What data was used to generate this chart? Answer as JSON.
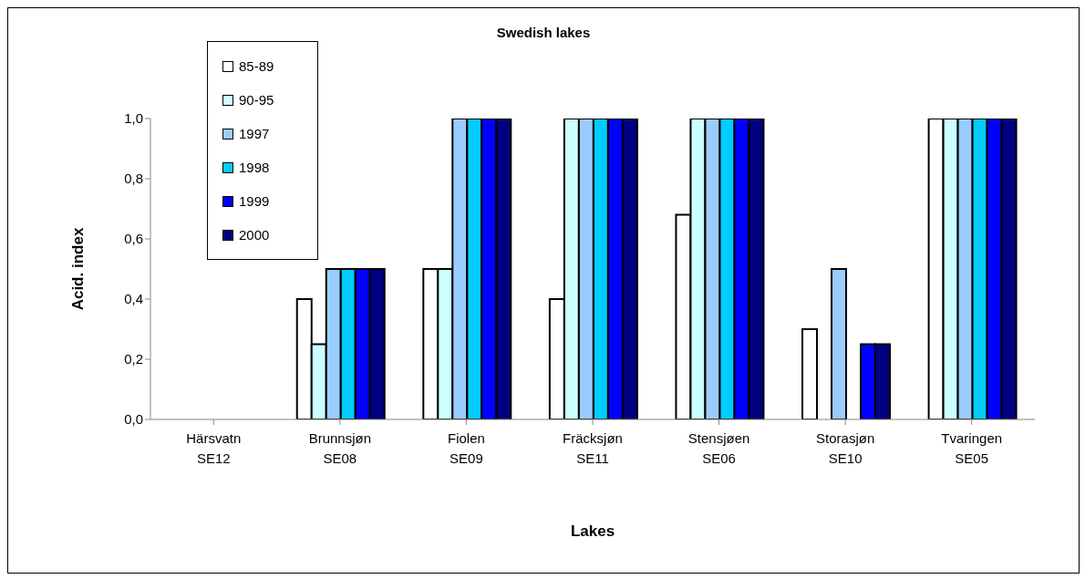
{
  "chart_data": {
    "type": "bar",
    "title": "Swedish lakes",
    "xlabel": "Lakes",
    "ylabel": "Acid. index",
    "categories": [
      "Härsvatn\nSE12",
      "Brunnsjøn\nSE08",
      "Fiolen\nSE09",
      "Fräcksjøn\nSE11",
      "Stensjøen\nSE06",
      "Storasjøn\nSE10",
      "Tvaringen\nSE05"
    ],
    "series": [
      {
        "name": "85-89",
        "color": "#ffffff",
        "values": [
          null,
          0.4,
          0.5,
          0.4,
          0.68,
          0.3,
          1.0
        ]
      },
      {
        "name": "90-95",
        "color": "#ccffff",
        "values": [
          null,
          0.25,
          0.5,
          1.0,
          1.0,
          null,
          1.0
        ]
      },
      {
        "name": "1997",
        "color": "#99ccff",
        "values": [
          null,
          0.5,
          1.0,
          1.0,
          1.0,
          0.5,
          1.0
        ]
      },
      {
        "name": "1998",
        "color": "#00ccff",
        "values": [
          null,
          0.5,
          1.0,
          1.0,
          1.0,
          null,
          1.0
        ]
      },
      {
        "name": "1999",
        "color": "#0000ff",
        "values": [
          null,
          0.5,
          1.0,
          1.0,
          1.0,
          0.25,
          1.0
        ]
      },
      {
        "name": "2000",
        "color": "#000080",
        "values": [
          null,
          0.5,
          1.0,
          1.0,
          1.0,
          0.25,
          1.0
        ]
      }
    ],
    "ylim": [
      0,
      1.0
    ],
    "yticks": [
      {
        "value": 0,
        "label": "0,0"
      },
      {
        "value": 0.2,
        "label": "0,2"
      },
      {
        "value": 0.4,
        "label": "0,4"
      },
      {
        "value": 0.6,
        "label": "0,6"
      },
      {
        "value": 0.8,
        "label": "0,8"
      },
      {
        "value": 1.0,
        "label": "1,0"
      }
    ],
    "grid": false,
    "legend": "top left"
  }
}
